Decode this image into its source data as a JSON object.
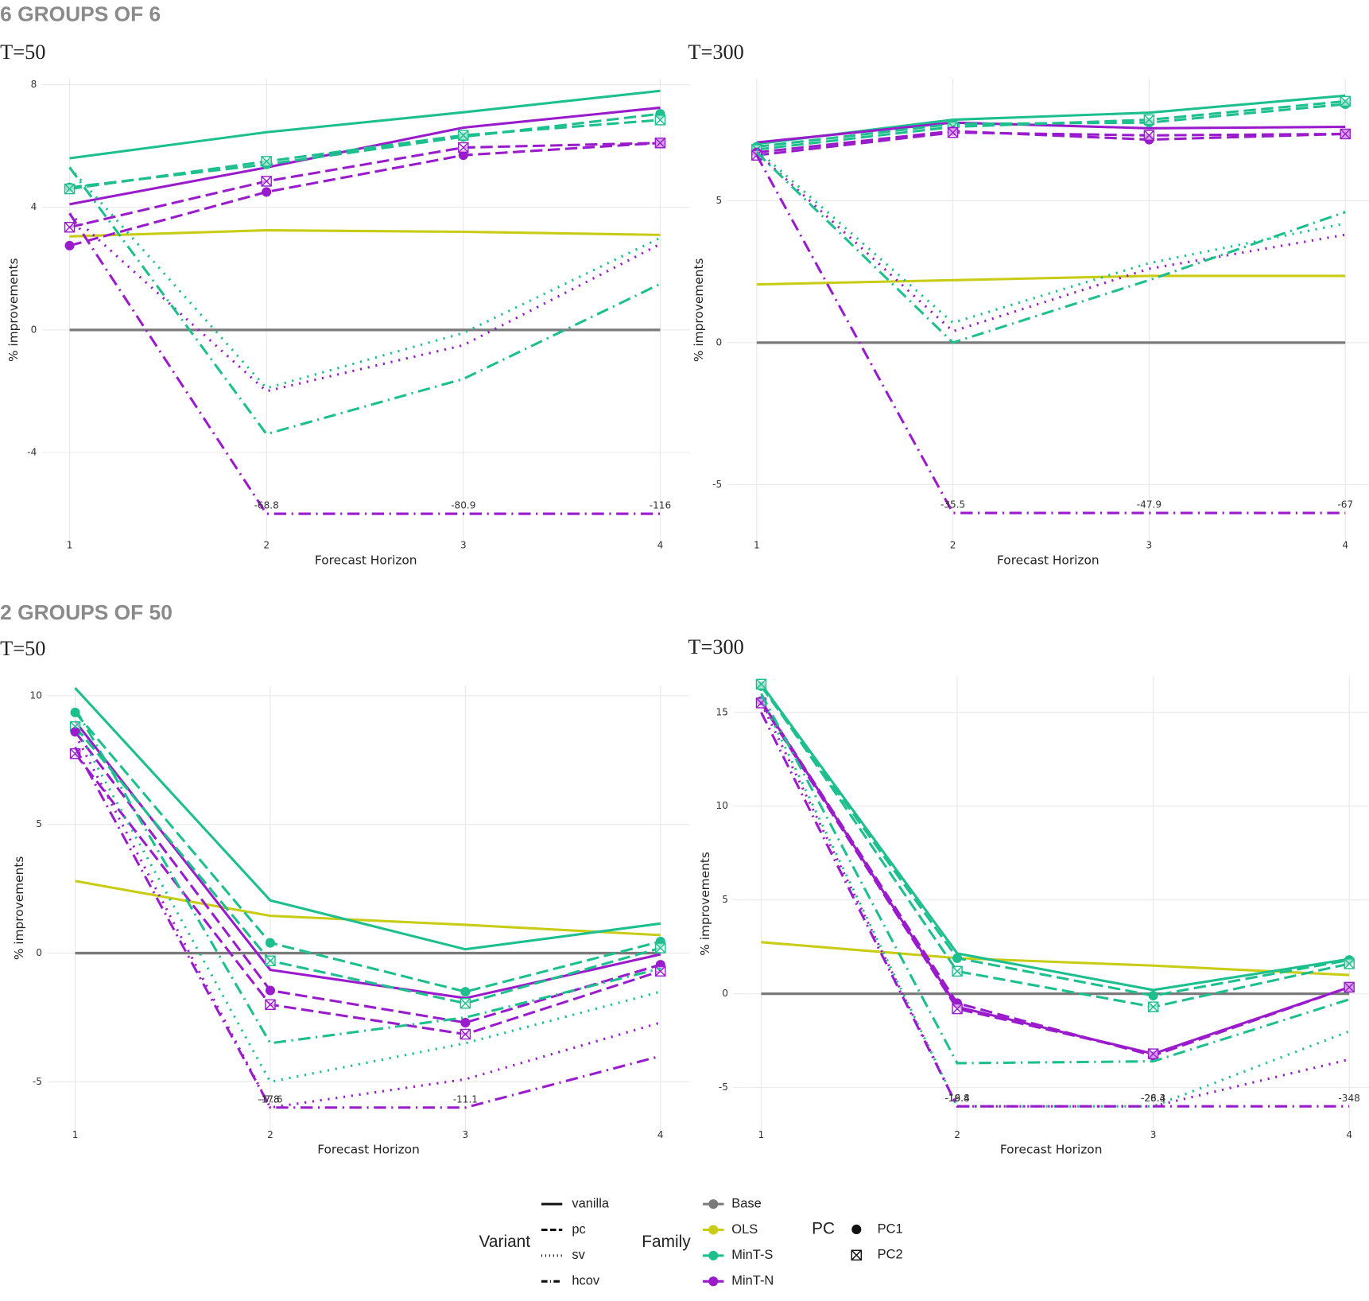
{
  "sections": [
    {
      "heading": "6 GROUPS OF 6"
    },
    {
      "heading": "2 GROUPS OF 50"
    }
  ],
  "chart_data": [
    {
      "type": "line",
      "title": "T=50",
      "xlabel": "Forecast Horizon",
      "ylabel": "% improvements",
      "x": [
        1,
        2,
        3,
        4
      ],
      "xlim": [
        0.86,
        4.15
      ],
      "xticks": [
        1,
        2,
        3,
        4
      ],
      "ylim": [
        -6.9,
        8.2
      ],
      "yticks": [
        -4,
        0,
        4,
        8
      ],
      "grid": true,
      "series": [
        {
          "family": "Base",
          "variant": "vanilla",
          "values": [
            0,
            0,
            0,
            0
          ]
        },
        {
          "family": "OLS",
          "variant": "vanilla",
          "values": [
            3.05,
            3.25,
            3.2,
            3.1
          ]
        },
        {
          "family": "MinT-S",
          "variant": "vanilla",
          "values": [
            5.6,
            6.45,
            7.1,
            7.8
          ]
        },
        {
          "family": "MinT-N",
          "variant": "vanilla",
          "values": [
            4.1,
            5.3,
            6.6,
            7.25
          ]
        },
        {
          "family": "MinT-S",
          "variant": "pc",
          "pc": "PC1",
          "values": [
            4.65,
            5.4,
            6.3,
            7.05
          ]
        },
        {
          "family": "MinT-S",
          "variant": "pc",
          "pc": "PC2",
          "values": [
            4.6,
            5.5,
            6.35,
            6.85
          ]
        },
        {
          "family": "MinT-N",
          "variant": "pc",
          "pc": "PC1",
          "values": [
            2.75,
            4.5,
            5.7,
            6.1
          ]
        },
        {
          "family": "MinT-N",
          "variant": "pc",
          "pc": "PC2",
          "values": [
            3.35,
            4.85,
            5.95,
            6.1
          ]
        },
        {
          "family": "MinT-S",
          "variant": "sv",
          "values": [
            5.3,
            -1.9,
            -0.1,
            3.0
          ]
        },
        {
          "family": "MinT-N",
          "variant": "sv",
          "values": [
            3.8,
            -2.0,
            -0.5,
            2.8
          ]
        },
        {
          "family": "MinT-S",
          "variant": "hcov",
          "values": [
            5.3,
            -3.4,
            -1.6,
            1.5
          ]
        },
        {
          "family": "MinT-N",
          "variant": "hcov",
          "values": [
            3.8,
            -6,
            -6,
            -6
          ]
        }
      ],
      "annotations": [
        {
          "x": 2,
          "text": "-68.8"
        },
        {
          "x": 3,
          "text": "-80.9"
        },
        {
          "x": 4,
          "text": "-116"
        }
      ]
    },
    {
      "type": "line",
      "title": "T=300",
      "xlabel": "Forecast Horizon",
      "ylabel": "% improvements",
      "x": [
        1,
        2,
        3,
        4
      ],
      "xlim": [
        0.85,
        4.12
      ],
      "xticks": [
        1,
        2,
        3,
        4
      ],
      "ylim": [
        -7,
        9.3
      ],
      "yticks": [
        -5,
        0,
        5
      ],
      "grid": true,
      "series": [
        {
          "family": "Base",
          "variant": "vanilla",
          "values": [
            0,
            0,
            0,
            0
          ]
        },
        {
          "family": "OLS",
          "variant": "vanilla",
          "values": [
            2.05,
            2.2,
            2.35,
            2.35
          ]
        },
        {
          "family": "MinT-S",
          "variant": "vanilla",
          "values": [
            7.0,
            7.85,
            8.1,
            8.7
          ]
        },
        {
          "family": "MinT-N",
          "variant": "vanilla",
          "values": [
            7.05,
            7.75,
            7.55,
            7.6
          ]
        },
        {
          "family": "MinT-S",
          "variant": "pc",
          "pc": "PC1",
          "values": [
            6.9,
            7.7,
            7.75,
            8.4
          ]
        },
        {
          "family": "MinT-S",
          "variant": "pc",
          "pc": "PC2",
          "values": [
            6.8,
            7.6,
            7.85,
            8.5
          ]
        },
        {
          "family": "MinT-N",
          "variant": "pc",
          "pc": "PC1",
          "values": [
            6.7,
            7.45,
            7.15,
            7.35
          ]
        },
        {
          "family": "MinT-N",
          "variant": "pc",
          "pc": "PC2",
          "values": [
            6.6,
            7.4,
            7.3,
            7.35
          ]
        },
        {
          "family": "MinT-S",
          "variant": "sv",
          "values": [
            6.8,
            0.7,
            2.8,
            4.2
          ]
        },
        {
          "family": "MinT-N",
          "variant": "sv",
          "values": [
            6.7,
            0.4,
            2.6,
            3.8
          ]
        },
        {
          "family": "MinT-S",
          "variant": "hcov",
          "values": [
            6.7,
            0.0,
            2.2,
            4.6
          ]
        },
        {
          "family": "MinT-N",
          "variant": "hcov",
          "values": [
            6.6,
            -6,
            -6,
            -6
          ]
        }
      ],
      "annotations": [
        {
          "x": 2,
          "text": "-35.5"
        },
        {
          "x": 3,
          "text": "-47.9"
        },
        {
          "x": 4,
          "text": "-67"
        }
      ]
    },
    {
      "type": "line",
      "title": "T=50",
      "xlabel": "Forecast Horizon",
      "ylabel": "% improvements",
      "x": [
        1,
        2,
        3,
        4
      ],
      "xlim": [
        0.857,
        4.15
      ],
      "xticks": [
        1,
        2,
        3,
        4
      ],
      "ylim": [
        -6.9,
        10.4
      ],
      "yticks": [
        -5,
        0,
        5,
        10
      ],
      "grid": true,
      "series": [
        {
          "family": "Base",
          "variant": "vanilla",
          "values": [
            0,
            0,
            0,
            0
          ]
        },
        {
          "family": "OLS",
          "variant": "vanilla",
          "values": [
            2.8,
            1.45,
            1.1,
            0.7
          ]
        },
        {
          "family": "MinT-S",
          "variant": "vanilla",
          "values": [
            10.3,
            2.05,
            0.15,
            1.15
          ]
        },
        {
          "family": "MinT-N",
          "variant": "vanilla",
          "values": [
            9.0,
            -0.65,
            -1.75,
            -0.05
          ]
        },
        {
          "family": "MinT-S",
          "variant": "pc",
          "pc": "PC1",
          "values": [
            9.35,
            0.4,
            -1.5,
            0.45
          ]
        },
        {
          "family": "MinT-S",
          "variant": "pc",
          "pc": "PC2",
          "values": [
            8.8,
            -0.3,
            -1.95,
            0.2
          ]
        },
        {
          "family": "MinT-N",
          "variant": "pc",
          "pc": "PC1",
          "values": [
            8.6,
            -1.45,
            -2.7,
            -0.45
          ]
        },
        {
          "family": "MinT-N",
          "variant": "pc",
          "pc": "PC2",
          "values": [
            7.75,
            -2.0,
            -3.15,
            -0.7
          ]
        },
        {
          "family": "MinT-S",
          "variant": "sv",
          "values": [
            8.8,
            -5.0,
            -3.5,
            -1.5
          ]
        },
        {
          "family": "MinT-N",
          "variant": "sv",
          "values": [
            8.5,
            -6,
            -4.9,
            -2.7
          ]
        },
        {
          "family": "MinT-S",
          "variant": "hcov",
          "values": [
            9.5,
            -3.5,
            -2.5,
            -0.6
          ]
        },
        {
          "family": "MinT-N",
          "variant": "hcov",
          "values": [
            8.0,
            -6,
            -6,
            -4.0
          ]
        }
      ],
      "annotations": [
        {
          "x": 2,
          "text": "-17.6"
        },
        {
          "x": 2,
          "text": "-7.8"
        },
        {
          "x": 3,
          "text": "-11.1"
        }
      ]
    },
    {
      "type": "line",
      "title": "T=300",
      "xlabel": "Forecast Horizon",
      "ylabel": "% improvements",
      "x": [
        1,
        2,
        3,
        4
      ],
      "xlim": [
        0.858,
        4.1
      ],
      "xticks": [
        1,
        2,
        3,
        4
      ],
      "ylim": [
        -7.3,
        16.9
      ],
      "yticks": [
        -5,
        0,
        5,
        10,
        15
      ],
      "grid": true,
      "series": [
        {
          "family": "Base",
          "variant": "vanilla",
          "values": [
            0,
            0,
            0,
            0
          ]
        },
        {
          "family": "OLS",
          "variant": "vanilla",
          "values": [
            2.75,
            1.9,
            1.5,
            1.0
          ]
        },
        {
          "family": "MinT-S",
          "variant": "vanilla",
          "values": [
            16.5,
            2.15,
            0.2,
            1.85
          ]
        },
        {
          "family": "MinT-N",
          "variant": "vanilla",
          "values": [
            15.6,
            -0.7,
            -3.2,
            0.35
          ]
        },
        {
          "family": "MinT-S",
          "variant": "pc",
          "pc": "PC1",
          "values": [
            16.4,
            1.9,
            -0.1,
            1.8
          ]
        },
        {
          "family": "MinT-S",
          "variant": "pc",
          "pc": "PC2",
          "values": [
            16.5,
            1.2,
            -0.7,
            1.6
          ]
        },
        {
          "family": "MinT-N",
          "variant": "pc",
          "pc": "PC1",
          "values": [
            15.6,
            -0.5,
            -3.3,
            0.35
          ]
        },
        {
          "family": "MinT-N",
          "variant": "pc",
          "pc": "PC2",
          "values": [
            15.5,
            -0.8,
            -3.2,
            0.35
          ]
        },
        {
          "family": "MinT-S",
          "variant": "sv",
          "values": [
            15.8,
            -6,
            -6,
            -2.0
          ]
        },
        {
          "family": "MinT-N",
          "variant": "sv",
          "values": [
            15.5,
            -6,
            -6,
            -3.5
          ]
        },
        {
          "family": "MinT-S",
          "variant": "hcov",
          "values": [
            16.0,
            -3.7,
            -3.6,
            -0.3
          ]
        },
        {
          "family": "MinT-N",
          "variant": "hcov",
          "values": [
            15.0,
            -6,
            -6,
            -6
          ]
        }
      ],
      "annotations": [
        {
          "x": 2,
          "text": "-16.8"
        },
        {
          "x": 2,
          "text": "-19.4"
        },
        {
          "x": 3,
          "text": "-26.3"
        },
        {
          "x": 3,
          "text": "-28.4"
        },
        {
          "x": 4,
          "text": "-348"
        }
      ]
    }
  ],
  "legend": {
    "groups": [
      {
        "title": "Variant",
        "key": "variant",
        "items": [
          {
            "label": "vanilla",
            "dash": "none"
          },
          {
            "label": "pc",
            "dash": "14 6"
          },
          {
            "label": "sv",
            "dash": "2 7"
          },
          {
            "label": "hcov",
            "dash": "14 6 2 6"
          }
        ]
      },
      {
        "title": "Family",
        "key": "family",
        "items": [
          {
            "label": "Base",
            "color": "#7a7a7a"
          },
          {
            "label": "OLS",
            "color": "#c8cc14"
          },
          {
            "label": "MinT-S",
            "color": "#1dbf8e"
          },
          {
            "label": "MinT-N",
            "color": "#9a1bcc"
          }
        ]
      },
      {
        "title": "PC",
        "key": "pc",
        "items": [
          {
            "label": "PC1",
            "marker": "circle"
          },
          {
            "label": "PC2",
            "marker": "boxed-x"
          }
        ]
      }
    ]
  }
}
